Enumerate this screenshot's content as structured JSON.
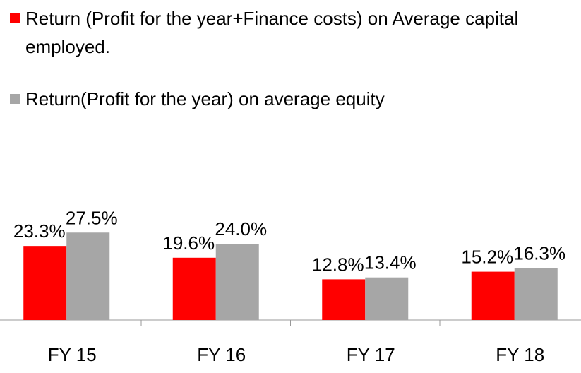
{
  "chart_data": {
    "type": "bar",
    "categories": [
      "FY 15",
      "FY 16",
      "FY 17",
      "FY 18"
    ],
    "series": [
      {
        "name": "Return (Profit for the year+Finance costs) on Average capital employed.",
        "color": "#ff0000",
        "values": [
          23.3,
          19.6,
          12.8,
          15.2
        ],
        "value_labels": [
          "23.3%",
          "19.6%",
          "12.8%",
          "15.2%"
        ]
      },
      {
        "name": "Return(Profit for the year) on average equity",
        "color": "#a6a6a6",
        "values": [
          27.5,
          24.0,
          13.4,
          16.3
        ],
        "value_labels": [
          "27.5%",
          "24.0%",
          "13.4%",
          "16.3%"
        ]
      }
    ],
    "legend": "top-left"
  }
}
